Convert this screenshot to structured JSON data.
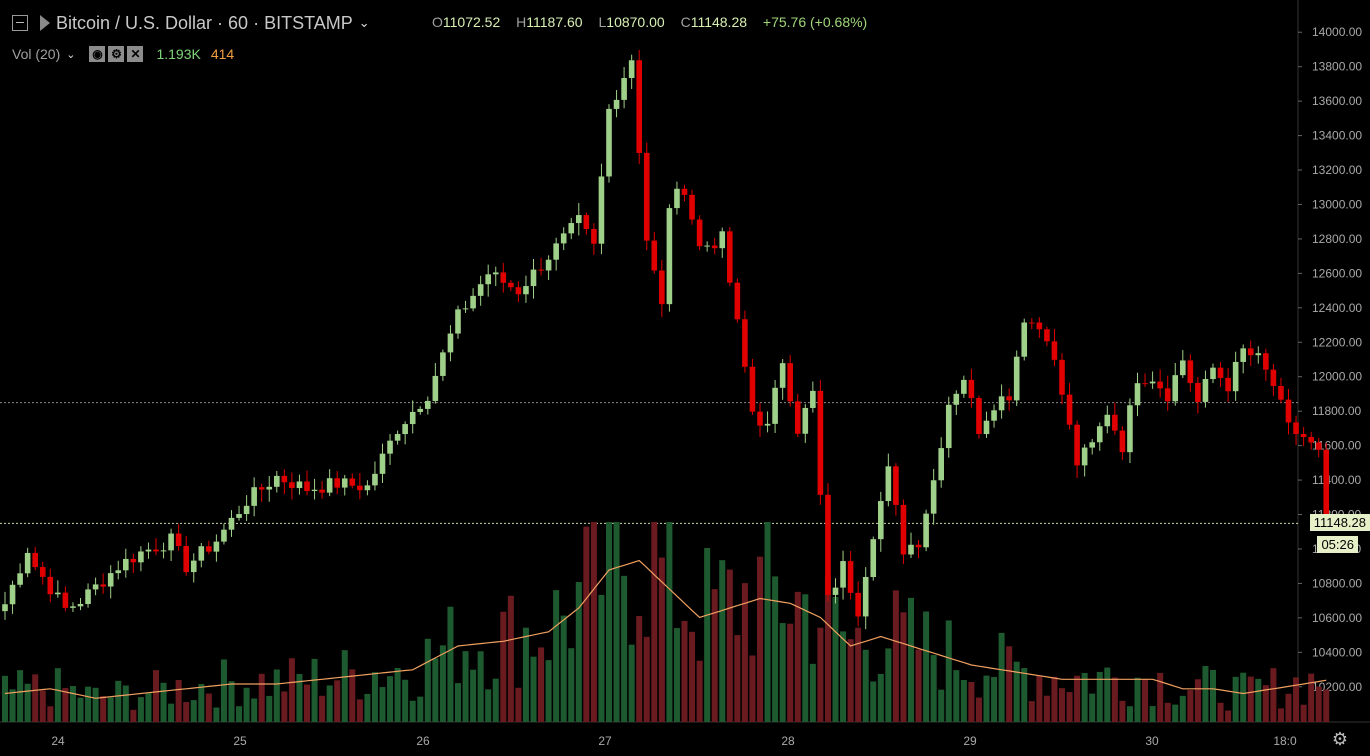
{
  "header": {
    "title": "Bitcoin / U.S. Dollar · 60 · BITSTAMP",
    "ohlc": {
      "o_key": "O",
      "o_val": "11072.52",
      "h_key": "H",
      "h_val": "11187.60",
      "l_key": "L",
      "l_val": "10870.00",
      "c_key": "C",
      "c_val": "11148.28",
      "change": "+75.76 (+0.68%)"
    }
  },
  "volume_indicator": {
    "label": "Vol (20)",
    "value1": "1.193K",
    "value2": "414",
    "buttons": [
      "eye-icon",
      "settings-icon",
      "close-icon"
    ]
  },
  "price_label": "11148.28",
  "time_label": "05:26",
  "colors": {
    "up": "#9fd08a",
    "down": "#e00000",
    "vol_up": "#1e5a30",
    "vol_down": "#6a1b20",
    "ma": "#f0a060",
    "background": "#000000"
  },
  "chart_data": {
    "type": "candlestick",
    "interval": "60",
    "ylim": [
      10100,
      14100
    ],
    "y_ticks": [
      "14000.00",
      "13800.00",
      "13600.00",
      "13400.00",
      "13200.00",
      "13000.00",
      "12800.00",
      "12600.00",
      "12400.00",
      "12200.00",
      "12000.00",
      "11800.00",
      "11600.00",
      "11400.00",
      "11200.00",
      "11000.00",
      "10800.00",
      "10600.00",
      "10400.00",
      "10200.00"
    ],
    "x_ticks": [
      "24",
      "25",
      "26",
      "27",
      "28",
      "29",
      "30",
      "18:0"
    ],
    "hlines": [
      11850,
      11148.28
    ],
    "candles_per_day": 24,
    "keypoints": [
      [
        0,
        10680
      ],
      [
        3,
        11000
      ],
      [
        4,
        10900
      ],
      [
        8,
        10650
      ],
      [
        10,
        10700
      ],
      [
        15,
        10900
      ],
      [
        18,
        10980
      ],
      [
        22,
        11050
      ],
      [
        24,
        10900
      ],
      [
        28,
        11050
      ],
      [
        32,
        11280
      ],
      [
        36,
        11420
      ],
      [
        40,
        11350
      ],
      [
        44,
        11380
      ],
      [
        48,
        11360
      ],
      [
        52,
        11700
      ],
      [
        56,
        11900
      ],
      [
        60,
        12350
      ],
      [
        64,
        12600
      ],
      [
        68,
        12500
      ],
      [
        72,
        12700
      ],
      [
        76,
        12900
      ],
      [
        78,
        12750
      ],
      [
        80,
        13550
      ],
      [
        83,
        13850
      ],
      [
        85,
        12800
      ],
      [
        87,
        12400
      ],
      [
        88,
        13000
      ],
      [
        90,
        13100
      ],
      [
        92,
        12750
      ],
      [
        95,
        12800
      ],
      [
        97,
        12300
      ],
      [
        99,
        11800
      ],
      [
        101,
        11700
      ],
      [
        103,
        12100
      ],
      [
        105,
        11700
      ],
      [
        107,
        11900
      ],
      [
        109,
        10700
      ],
      [
        111,
        10900
      ],
      [
        113,
        10650
      ],
      [
        115,
        11100
      ],
      [
        117,
        11450
      ],
      [
        119,
        11000
      ],
      [
        121,
        11050
      ],
      [
        123,
        11400
      ],
      [
        125,
        11850
      ],
      [
        127,
        12000
      ],
      [
        129,
        11700
      ],
      [
        131,
        11850
      ],
      [
        133,
        11900
      ],
      [
        135,
        12350
      ],
      [
        138,
        12250
      ],
      [
        140,
        11900
      ],
      [
        142,
        11500
      ],
      [
        144,
        11600
      ],
      [
        146,
        11800
      ],
      [
        148,
        11600
      ],
      [
        150,
        12000
      ],
      [
        152,
        12000
      ],
      [
        154,
        11900
      ],
      [
        156,
        12100
      ],
      [
        158,
        11850
      ],
      [
        160,
        12050
      ],
      [
        162,
        11950
      ],
      [
        164,
        12150
      ],
      [
        166,
        12100
      ],
      [
        168,
        11950
      ],
      [
        170,
        11700
      ],
      [
        172,
        11650
      ],
      [
        174,
        11550
      ],
      [
        175,
        11148
      ]
    ],
    "volume_keypoints": [
      [
        0,
        30
      ],
      [
        6,
        35
      ],
      [
        12,
        25
      ],
      [
        18,
        30
      ],
      [
        24,
        35
      ],
      [
        30,
        40
      ],
      [
        36,
        40
      ],
      [
        42,
        45
      ],
      [
        48,
        50
      ],
      [
        54,
        55
      ],
      [
        60,
        80
      ],
      [
        66,
        85
      ],
      [
        72,
        95
      ],
      [
        76,
        120
      ],
      [
        80,
        160
      ],
      [
        84,
        170
      ],
      [
        88,
        140
      ],
      [
        92,
        110
      ],
      [
        96,
        120
      ],
      [
        100,
        130
      ],
      [
        104,
        125
      ],
      [
        108,
        110
      ],
      [
        112,
        80
      ],
      [
        116,
        90
      ],
      [
        120,
        80
      ],
      [
        124,
        70
      ],
      [
        128,
        60
      ],
      [
        132,
        55
      ],
      [
        136,
        50
      ],
      [
        140,
        45
      ],
      [
        144,
        45
      ],
      [
        148,
        45
      ],
      [
        152,
        45
      ],
      [
        156,
        35
      ],
      [
        160,
        35
      ],
      [
        164,
        30
      ],
      [
        168,
        35
      ],
      [
        172,
        40
      ],
      [
        175,
        44
      ]
    ],
    "volume_ylim": [
      0,
      200
    ]
  }
}
